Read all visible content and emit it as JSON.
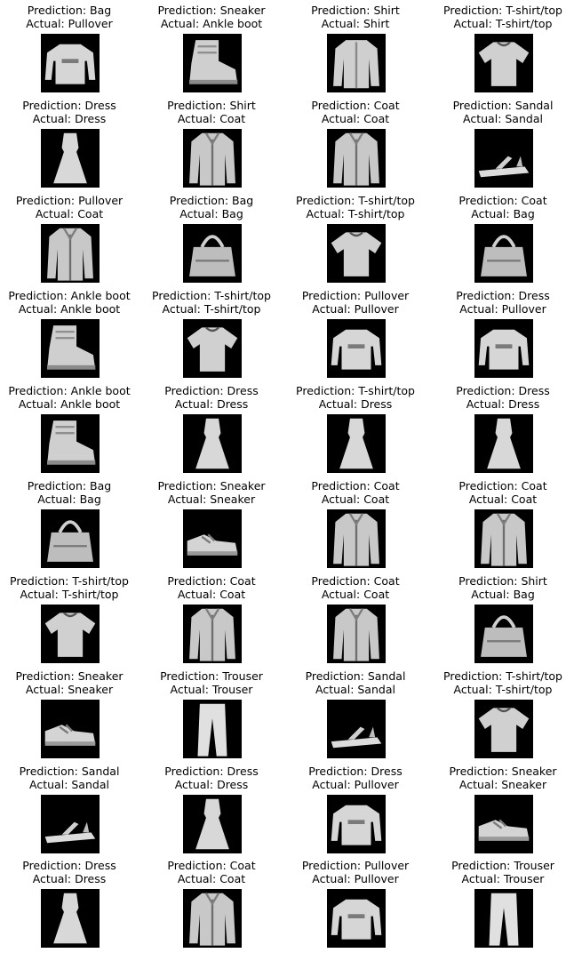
{
  "colors": {
    "background": "#ffffff",
    "thumbnail_background": "#000000",
    "text": "#000000"
  },
  "samples": [
    {
      "prediction": "Prediction: Bag",
      "actual": "Actual: Pullover",
      "icon": "pullover-icon"
    },
    {
      "prediction": "Prediction: Sneaker",
      "actual": "Actual: Ankle boot",
      "icon": "ankle-boot-icon"
    },
    {
      "prediction": "Prediction: Shirt",
      "actual": "Actual: Shirt",
      "icon": "shirt-icon"
    },
    {
      "prediction": "Prediction: T-shirt/top",
      "actual": "Actual: T-shirt/top",
      "icon": "tshirt-icon"
    },
    {
      "prediction": "Prediction: Dress",
      "actual": "Actual: Dress",
      "icon": "dress-icon"
    },
    {
      "prediction": "Prediction: Shirt",
      "actual": "Actual: Coat",
      "icon": "coat-icon"
    },
    {
      "prediction": "Prediction: Coat",
      "actual": "Actual: Coat",
      "icon": "coat-icon"
    },
    {
      "prediction": "Prediction: Sandal",
      "actual": "Actual: Sandal",
      "icon": "sandal-icon"
    },
    {
      "prediction": "Prediction: Pullover",
      "actual": "Actual: Coat",
      "icon": "coat-icon"
    },
    {
      "prediction": "Prediction: Bag",
      "actual": "Actual: Bag",
      "icon": "bag-icon"
    },
    {
      "prediction": "Prediction: T-shirt/top",
      "actual": "Actual: T-shirt/top",
      "icon": "tshirt-icon"
    },
    {
      "prediction": "Prediction: Coat",
      "actual": "Actual: Bag",
      "icon": "bag-icon"
    },
    {
      "prediction": "Prediction: Ankle boot",
      "actual": "Actual: Ankle boot",
      "icon": "ankle-boot-icon"
    },
    {
      "prediction": "Prediction: T-shirt/top",
      "actual": "Actual: T-shirt/top",
      "icon": "tshirt-icon"
    },
    {
      "prediction": "Prediction: Pullover",
      "actual": "Actual: Pullover",
      "icon": "pullover-icon"
    },
    {
      "prediction": "Prediction: Dress",
      "actual": "Actual: Pullover",
      "icon": "pullover-icon"
    },
    {
      "prediction": "Prediction: Ankle boot",
      "actual": "Actual: Ankle boot",
      "icon": "ankle-boot-icon"
    },
    {
      "prediction": "Prediction: Dress",
      "actual": "Actual: Dress",
      "icon": "dress-icon"
    },
    {
      "prediction": "Prediction: T-shirt/top",
      "actual": "Actual: Dress",
      "icon": "dress-icon"
    },
    {
      "prediction": "Prediction: Dress",
      "actual": "Actual: Dress",
      "icon": "dress-icon"
    },
    {
      "prediction": "Prediction: Bag",
      "actual": "Actual: Bag",
      "icon": "bag-icon"
    },
    {
      "prediction": "Prediction: Sneaker",
      "actual": "Actual: Sneaker",
      "icon": "sneaker-icon"
    },
    {
      "prediction": "Prediction: Coat",
      "actual": "Actual: Coat",
      "icon": "coat-icon"
    },
    {
      "prediction": "Prediction: Coat",
      "actual": "Actual: Coat",
      "icon": "coat-icon"
    },
    {
      "prediction": "Prediction: T-shirt/top",
      "actual": "Actual: T-shirt/top",
      "icon": "tshirt-icon"
    },
    {
      "prediction": "Prediction: Coat",
      "actual": "Actual: Coat",
      "icon": "coat-icon"
    },
    {
      "prediction": "Prediction: Coat",
      "actual": "Actual: Coat",
      "icon": "coat-icon"
    },
    {
      "prediction": "Prediction: Shirt",
      "actual": "Actual: Bag",
      "icon": "bag-icon"
    },
    {
      "prediction": "Prediction: Sneaker",
      "actual": "Actual: Sneaker",
      "icon": "sneaker-icon"
    },
    {
      "prediction": "Prediction: Trouser",
      "actual": "Actual: Trouser",
      "icon": "trouser-icon"
    },
    {
      "prediction": "Prediction: Sandal",
      "actual": "Actual: Sandal",
      "icon": "sandal-icon"
    },
    {
      "prediction": "Prediction: T-shirt/top",
      "actual": "Actual: T-shirt/top",
      "icon": "tshirt-icon"
    },
    {
      "prediction": "Prediction: Sandal",
      "actual": "Actual: Sandal",
      "icon": "sandal-icon"
    },
    {
      "prediction": "Prediction: Dress",
      "actual": "Actual: Dress",
      "icon": "dress-icon"
    },
    {
      "prediction": "Prediction: Dress",
      "actual": "Actual: Pullover",
      "icon": "pullover-icon"
    },
    {
      "prediction": "Prediction: Sneaker",
      "actual": "Actual: Sneaker",
      "icon": "sneaker-icon"
    },
    {
      "prediction": "Prediction: Dress",
      "actual": "Actual: Dress",
      "icon": "dress-icon"
    },
    {
      "prediction": "Prediction: Coat",
      "actual": "Actual: Coat",
      "icon": "coat-icon"
    },
    {
      "prediction": "Prediction: Pullover",
      "actual": "Actual: Pullover",
      "icon": "pullover-icon"
    },
    {
      "prediction": "Prediction: Trouser",
      "actual": "Actual: Trouser",
      "icon": "trouser-icon"
    }
  ]
}
